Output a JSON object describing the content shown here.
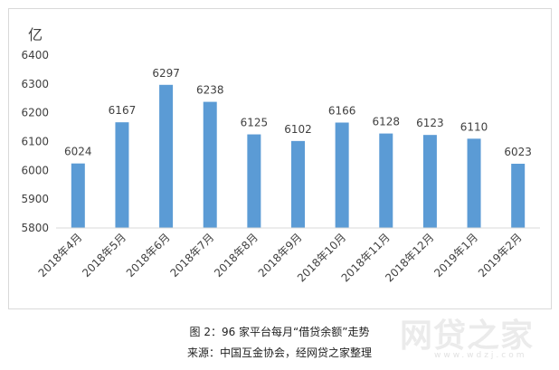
{
  "chart_data": {
    "type": "bar",
    "unit_label": "亿",
    "categories": [
      "2018年4月",
      "2018年5月",
      "2018年6月",
      "2018年7月",
      "2018年8月",
      "2018年9月",
      "2018年10月",
      "2018年11月",
      "2018年12月",
      "2019年1月",
      "2019年2月"
    ],
    "values": [
      6024,
      6167,
      6297,
      6238,
      6125,
      6102,
      6166,
      6128,
      6123,
      6110,
      6023
    ],
    "ylim": [
      5800,
      6400
    ],
    "yticks": [
      5800,
      5900,
      6000,
      6100,
      6200,
      6300,
      6400
    ],
    "grid": false,
    "legend": "none",
    "bar_color": "#5b9bd5"
  },
  "caption": {
    "line1": "图 2：96 家平台每月“借贷余额”走势",
    "line2": "来源：中国互金协会，经网贷之家整理"
  },
  "watermark": {
    "text": "网贷之家",
    "url": "www.wdzj.com"
  }
}
